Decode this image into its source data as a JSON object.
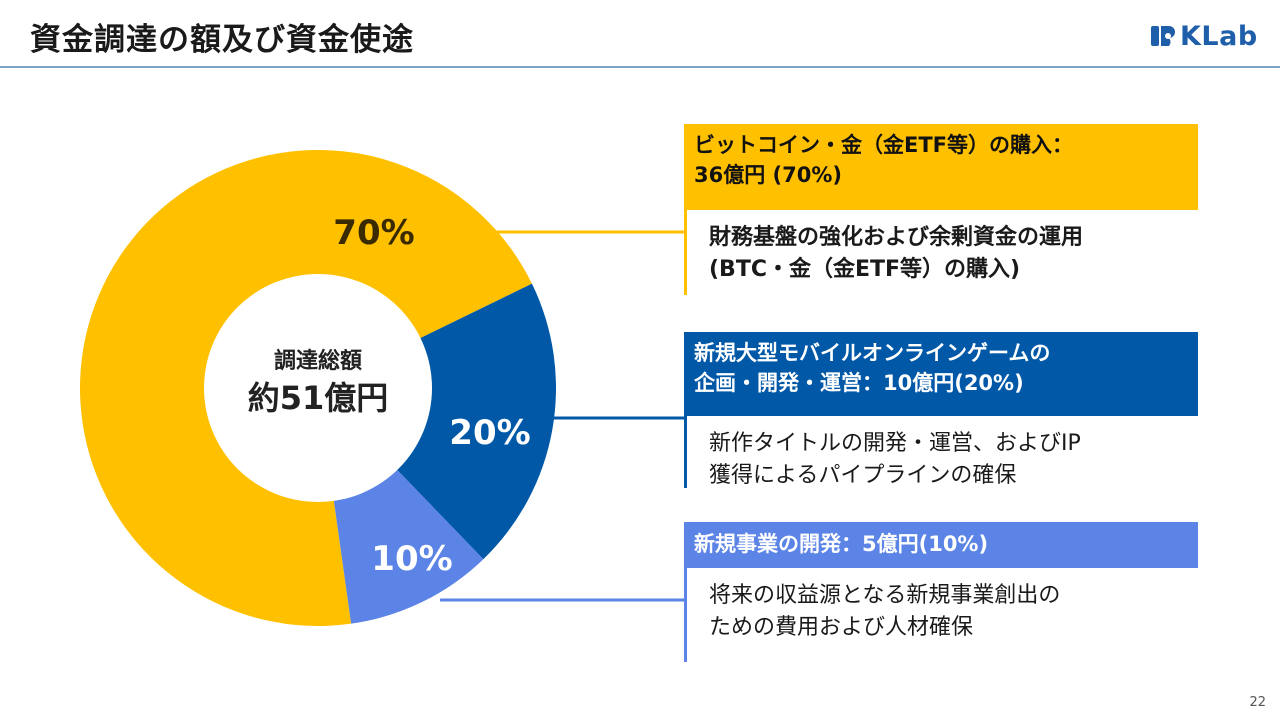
{
  "header": {
    "title": "資金調達の額及び資金使途",
    "logo_text": "KLab"
  },
  "chart_data": {
    "type": "pie",
    "style": "donut",
    "center_label": "調達総額",
    "center_value": "約51億円",
    "slices": [
      {
        "name": "ビットコイン・金（金ETF等）の購入",
        "value": 70,
        "label": "70%",
        "color": "#ffc000"
      },
      {
        "name": "新規大型モバイルオンラインゲームの企画・開発・運営",
        "value": 20,
        "label": "20%",
        "color": "#0058a7"
      },
      {
        "name": "新規事業の開発",
        "value": 10,
        "label": "10%",
        "color": "#5b84e6"
      }
    ]
  },
  "callouts": [
    {
      "heading_line1": "ビットコイン・金（金ETF等）の購入：",
      "heading_line2": "36億円 (70%)",
      "detail_line1": "財務基盤の強化および余剰資金の運用",
      "detail_line2": "(BTC・金（金ETF等）の購入)"
    },
    {
      "heading_line1": "新規大型モバイルオンラインゲームの",
      "heading_line2": "企画・開発・運営：10億円(20%)",
      "detail_line1": "新作タイトルの開発・運営、およびIP",
      "detail_line2": "獲得によるパイプラインの確保"
    },
    {
      "heading_line1": "新規事業の開発：5億円(10%)",
      "detail_line1": "将来の収益源となる新規事業創出の",
      "detail_line2": "ための費用および人材確保"
    }
  ],
  "footer": {
    "page_number": "22"
  }
}
